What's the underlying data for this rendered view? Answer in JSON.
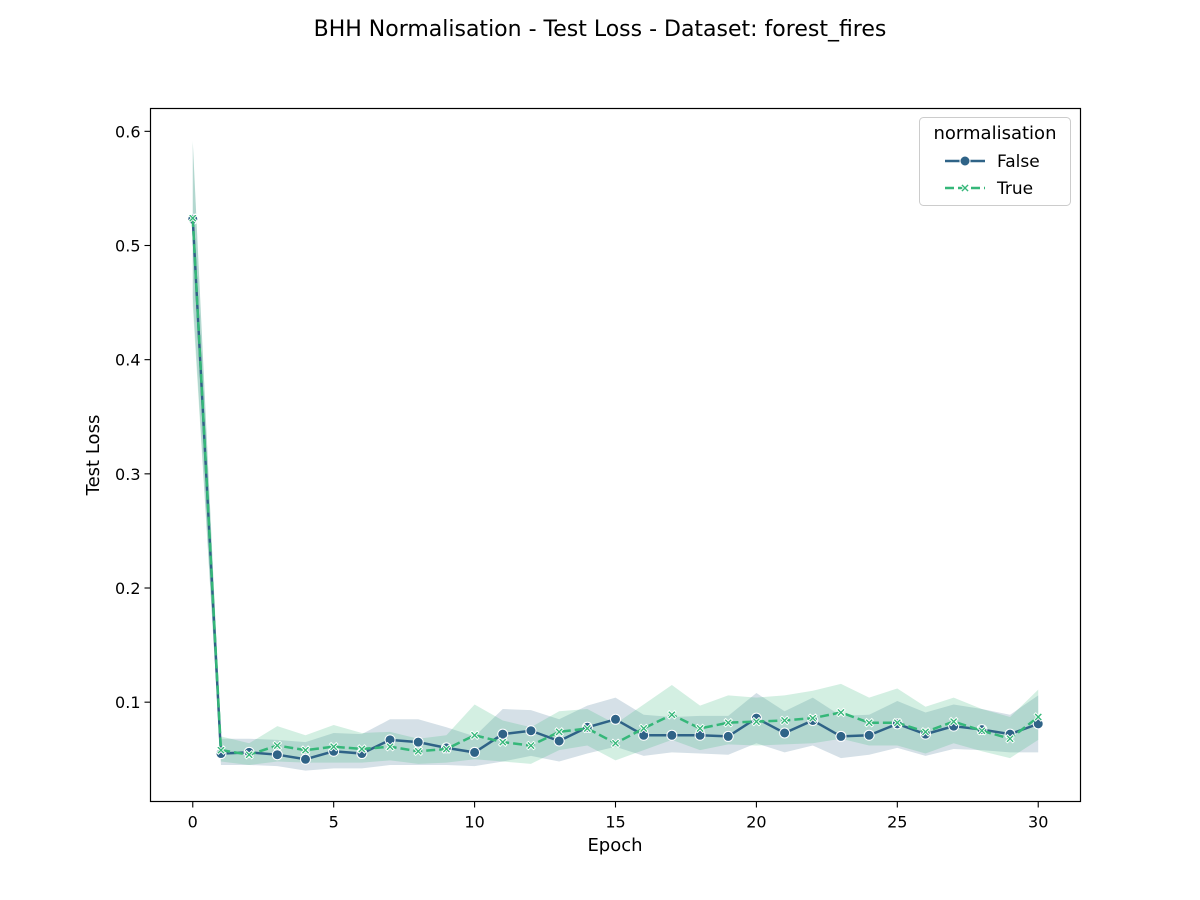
{
  "chart_data": {
    "type": "line",
    "title": "BHH Normalisation - Test Loss - Dataset: forest_fires",
    "xlabel": "Epoch",
    "ylabel": "Test Loss",
    "xlim": [
      -1.5,
      31.5
    ],
    "ylim": [
      0.013,
      0.62
    ],
    "xticks": [
      0,
      5,
      10,
      15,
      20,
      25,
      30
    ],
    "yticks": [
      0.1,
      0.2,
      0.3,
      0.4,
      0.5,
      0.6
    ],
    "ytick_labels": [
      "0.1",
      "0.2",
      "0.3",
      "0.4",
      "0.5",
      "0.6"
    ],
    "grid": false,
    "legend": {
      "title": "normalisation",
      "placement": "top-right"
    },
    "x": [
      0,
      1,
      2,
      3,
      4,
      5,
      6,
      7,
      8,
      9,
      10,
      11,
      12,
      13,
      14,
      15,
      16,
      17,
      18,
      19,
      20,
      21,
      22,
      23,
      24,
      25,
      26,
      27,
      28,
      29,
      30
    ],
    "series": [
      {
        "name": "False",
        "color": "#2f6387",
        "marker": "circle",
        "dash": "solid",
        "values": [
          0.523,
          0.055,
          0.056,
          0.054,
          0.05,
          0.057,
          0.055,
          0.067,
          0.065,
          0.06,
          0.056,
          0.072,
          0.075,
          0.066,
          0.078,
          0.085,
          0.071,
          0.071,
          0.071,
          0.07,
          0.086,
          0.073,
          0.084,
          0.07,
          0.071,
          0.081,
          0.072,
          0.079,
          0.076,
          0.072,
          0.081
        ],
        "lower": [
          0.455,
          0.045,
          0.045,
          0.044,
          0.04,
          0.042,
          0.042,
          0.045,
          0.045,
          0.045,
          0.044,
          0.048,
          0.053,
          0.048,
          0.055,
          0.061,
          0.053,
          0.056,
          0.055,
          0.054,
          0.064,
          0.056,
          0.062,
          0.051,
          0.054,
          0.06,
          0.053,
          0.059,
          0.058,
          0.056,
          0.056
        ],
        "upper": [
          0.59,
          0.068,
          0.068,
          0.067,
          0.065,
          0.073,
          0.072,
          0.085,
          0.085,
          0.078,
          0.07,
          0.094,
          0.093,
          0.085,
          0.097,
          0.104,
          0.089,
          0.087,
          0.088,
          0.088,
          0.108,
          0.092,
          0.104,
          0.088,
          0.089,
          0.101,
          0.091,
          0.098,
          0.094,
          0.089,
          0.106
        ]
      },
      {
        "name": "True",
        "color": "#35b779",
        "marker": "x",
        "dash": "dashed",
        "values": [
          0.524,
          0.058,
          0.054,
          0.062,
          0.058,
          0.061,
          0.059,
          0.061,
          0.057,
          0.059,
          0.071,
          0.065,
          0.062,
          0.074,
          0.077,
          0.064,
          0.077,
          0.089,
          0.077,
          0.082,
          0.083,
          0.084,
          0.086,
          0.091,
          0.082,
          0.082,
          0.074,
          0.083,
          0.075,
          0.068,
          0.087
        ],
        "lower": [
          0.447,
          0.048,
          0.045,
          0.048,
          0.047,
          0.047,
          0.047,
          0.049,
          0.046,
          0.047,
          0.05,
          0.048,
          0.046,
          0.058,
          0.062,
          0.049,
          0.058,
          0.067,
          0.058,
          0.063,
          0.062,
          0.063,
          0.064,
          0.068,
          0.062,
          0.062,
          0.055,
          0.064,
          0.057,
          0.051,
          0.067
        ],
        "upper": [
          0.592,
          0.07,
          0.064,
          0.079,
          0.071,
          0.08,
          0.073,
          0.074,
          0.068,
          0.071,
          0.098,
          0.084,
          0.078,
          0.092,
          0.094,
          0.081,
          0.098,
          0.115,
          0.097,
          0.106,
          0.104,
          0.106,
          0.11,
          0.116,
          0.104,
          0.112,
          0.096,
          0.104,
          0.094,
          0.087,
          0.111
        ]
      }
    ]
  }
}
